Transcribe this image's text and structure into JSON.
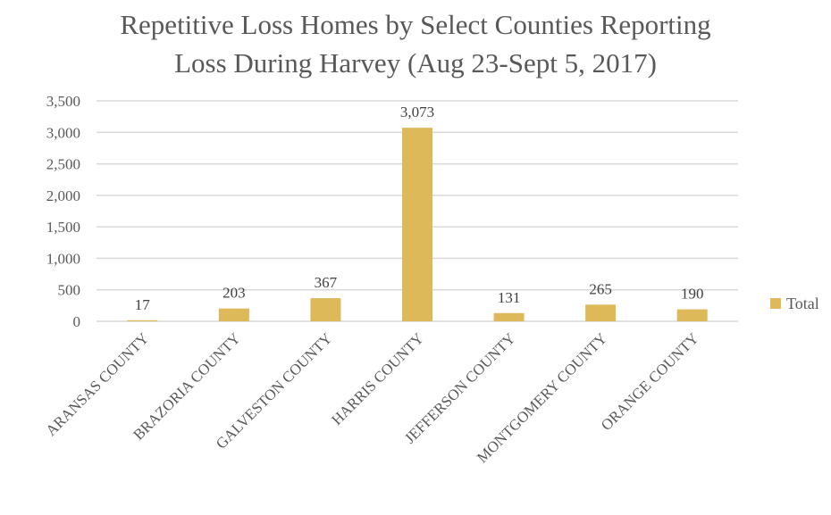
{
  "chart_data": {
    "type": "bar",
    "title_lines": [
      "Repetitive Loss Homes by Select Counties Reporting",
      "Loss During Harvey (Aug 23-Sept 5, 2017)"
    ],
    "categories": [
      "ARANSAS COUNTY",
      "BRAZORIA COUNTY",
      "GALVESTON COUNTY",
      "HARRIS COUNTY",
      "JEFFERSON COUNTY",
      "MONTGOMERY COUNTY",
      "ORANGE COUNTY"
    ],
    "series": [
      {
        "name": "Total",
        "values": [
          17,
          203,
          367,
          3073,
          131,
          265,
          190
        ],
        "labels": [
          "17",
          "203",
          "367",
          "3,073",
          "131",
          "265",
          "190"
        ],
        "color": "#DDB95A"
      }
    ],
    "y_ticks": [
      {
        "value": 0,
        "label": "0"
      },
      {
        "value": 500,
        "label": "500"
      },
      {
        "value": 1000,
        "label": "1,000"
      },
      {
        "value": 1500,
        "label": "1,500"
      },
      {
        "value": 2000,
        "label": "2,000"
      },
      {
        "value": 2500,
        "label": "2,500"
      },
      {
        "value": 3000,
        "label": "3,000"
      },
      {
        "value": 3500,
        "label": "3,500"
      }
    ],
    "ylim": [
      0,
      3500
    ],
    "grid": true,
    "legend_position": "right",
    "colors": {
      "bar": "#DDB95A",
      "grid": "#D9D9D9",
      "text": "#595959"
    }
  }
}
